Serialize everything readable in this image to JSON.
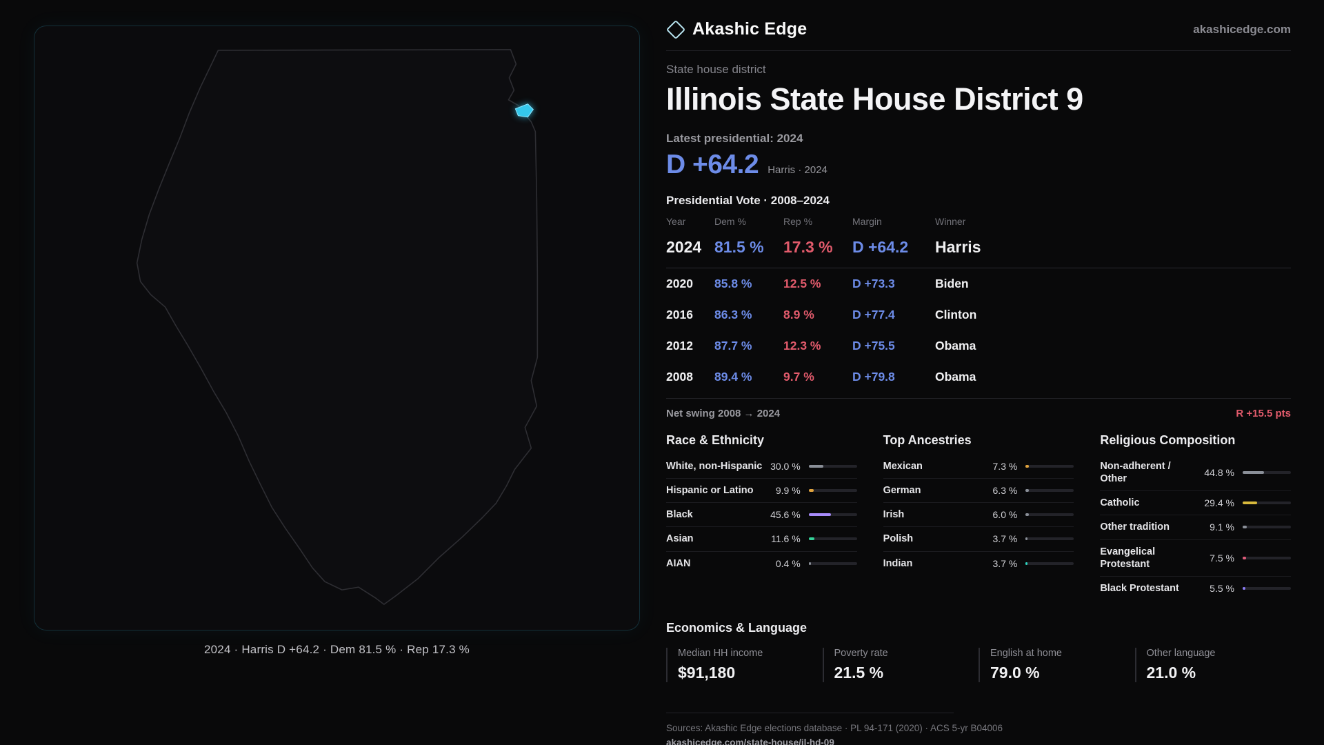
{
  "colors": {
    "dem": "#6d8ce8",
    "rep": "#e25b6c",
    "cyan": "#35c8ec",
    "panelBorder": "rgba(53,200,236,0.20)"
  },
  "brand": {
    "name": "Akashic Edge",
    "site": "akashicedge.com"
  },
  "map": {
    "caption": "2024 · Harris D +64.2 · Dem 81.5 % · Rep 17.3 %"
  },
  "header": {
    "kicker": "State house district",
    "title": "Illinois State House District 9",
    "latest_label": "Latest presidential: 2024",
    "margin_big": "D +64.2",
    "margin_note": "Harris · 2024"
  },
  "vote": {
    "title": "Presidential Vote · 2008–2024",
    "columns": [
      "Year",
      "Dem %",
      "Rep %",
      "Margin",
      "Winner"
    ],
    "rows": [
      {
        "year": "2024",
        "dem": "81.5 %",
        "rep": "17.3 %",
        "margin": "D +64.2",
        "winner": "Harris"
      },
      {
        "year": "2020",
        "dem": "85.8 %",
        "rep": "12.5 %",
        "margin": "D +73.3",
        "winner": "Biden"
      },
      {
        "year": "2016",
        "dem": "86.3 %",
        "rep": "8.9 %",
        "margin": "D +77.4",
        "winner": "Clinton"
      },
      {
        "year": "2012",
        "dem": "87.7 %",
        "rep": "12.3 %",
        "margin": "D +75.5",
        "winner": "Obama"
      },
      {
        "year": "2008",
        "dem": "89.4 %",
        "rep": "9.7 %",
        "margin": "D +79.8",
        "winner": "Obama"
      }
    ],
    "swing_label": "Net swing 2008 → 2024",
    "swing_value": "R +15.5 pts"
  },
  "demographics": {
    "race": {
      "title": "Race & Ethnicity",
      "rows": [
        {
          "label": "White, non-Hispanic",
          "value": "30.0 %",
          "pct": 30.0,
          "color": "#8a8f98"
        },
        {
          "label": "Hispanic or Latino",
          "value": "9.9 %",
          "pct": 9.9,
          "color": "#e0a33e"
        },
        {
          "label": "Black",
          "value": "45.6 %",
          "pct": 45.6,
          "color": "#a78bfa"
        },
        {
          "label": "Asian",
          "value": "11.6 %",
          "pct": 11.6,
          "color": "#34d399"
        },
        {
          "label": "AIAN",
          "value": "0.4 %",
          "pct": 0.4,
          "color": "#8a8f98"
        }
      ]
    },
    "ancestries": {
      "title": "Top Ancestries",
      "rows": [
        {
          "label": "Mexican",
          "value": "7.3 %",
          "pct": 7.3,
          "color": "#e0a33e"
        },
        {
          "label": "German",
          "value": "6.3 %",
          "pct": 6.3,
          "color": "#8a8f98"
        },
        {
          "label": "Irish",
          "value": "6.0 %",
          "pct": 6.0,
          "color": "#8a8f98"
        },
        {
          "label": "Polish",
          "value": "3.7 %",
          "pct": 3.7,
          "color": "#8a8f98"
        },
        {
          "label": "Indian",
          "value": "3.7 %",
          "pct": 3.7,
          "color": "#2dd4bf"
        }
      ]
    },
    "religion": {
      "title": "Religious Composition",
      "rows": [
        {
          "label": "Non-adherent / Other",
          "value": "44.8 %",
          "pct": 44.8,
          "color": "#8a8f98"
        },
        {
          "label": "Catholic",
          "value": "29.4 %",
          "pct": 29.4,
          "color": "#d8b93c"
        },
        {
          "label": "Other tradition",
          "value": "9.1 %",
          "pct": 9.1,
          "color": "#8a8f98"
        },
        {
          "label": "Evangelical Protestant",
          "value": "7.5 %",
          "pct": 7.5,
          "color": "#e05c7a"
        },
        {
          "label": "Black Protestant",
          "value": "5.5 %",
          "pct": 5.5,
          "color": "#8b7cf6"
        }
      ]
    }
  },
  "economics": {
    "title": "Economics & Language",
    "stats": [
      {
        "label": "Median HH income",
        "value": "$91,180"
      },
      {
        "label": "Poverty rate",
        "value": "21.5 %"
      },
      {
        "label": "English at home",
        "value": "79.0 %"
      },
      {
        "label": "Other language",
        "value": "21.0 %"
      }
    ]
  },
  "footer": {
    "sources": "Sources: Akashic Edge elections database · PL 94-171 (2020) · ACS 5-yr B04006",
    "permalink": "akashicedge.com/state-house/il-hd-09"
  }
}
